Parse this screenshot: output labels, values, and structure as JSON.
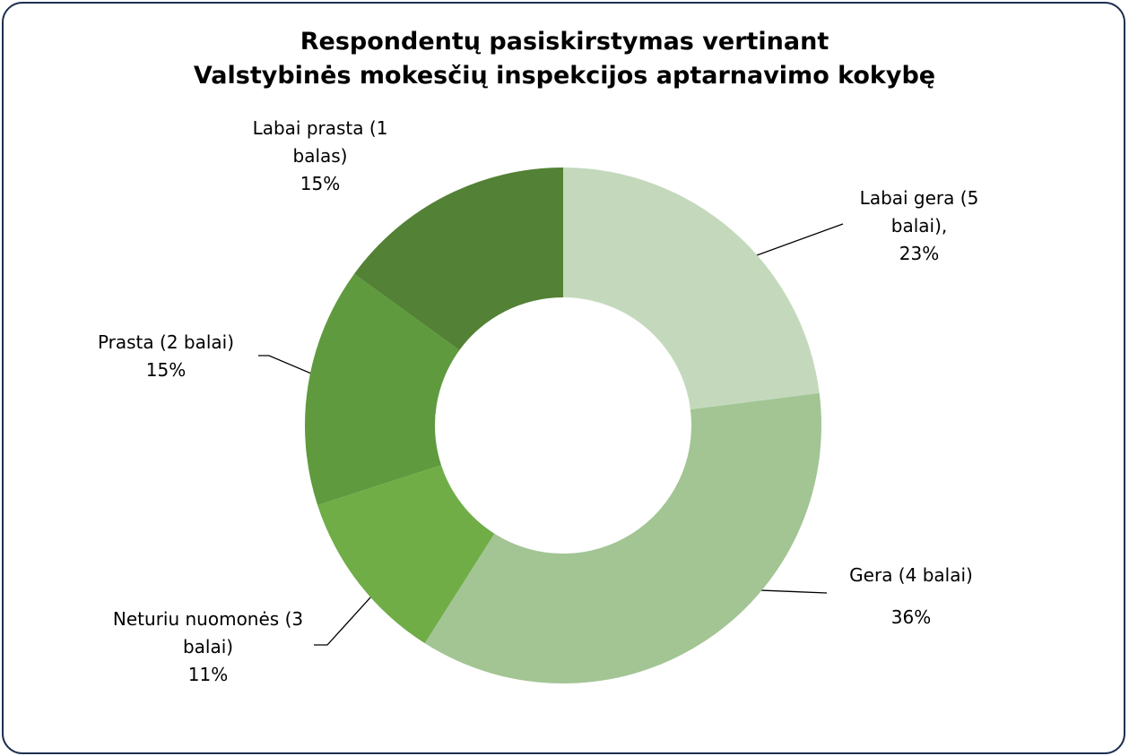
{
  "chart_data": {
    "type": "donut",
    "title": [
      "Respondentų pasiskirstymas vertinant",
      "Valstybinės mokesčių inspekcijos aptarnavimo kokybę"
    ],
    "categories": [
      "Labai gera (5 balai),",
      "Gera (4 balai)",
      "Neturiu nuomonės (3 balai)",
      "Prasta (2 balai)",
      "Labai prasta (1 balas)"
    ],
    "values": [
      23,
      36,
      11,
      15,
      15
    ],
    "value_labels": [
      "23%",
      "36%",
      "11%",
      "15%",
      "15%"
    ],
    "colors": [
      "#c4d9bc",
      "#a2c593",
      "#70ad47",
      "#5f9a3e",
      "#538135"
    ]
  }
}
